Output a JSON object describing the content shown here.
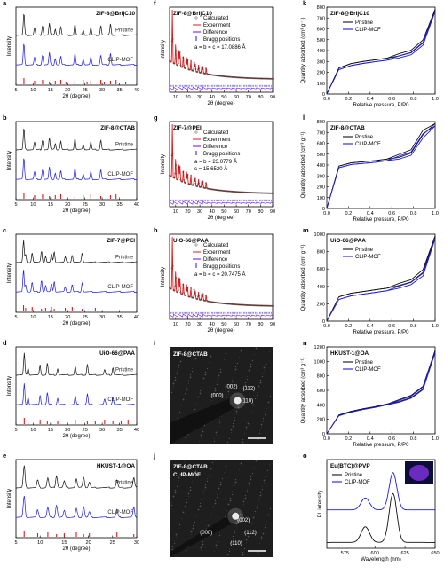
{
  "colors": {
    "black": "#111111",
    "blue": "#1a1ae6",
    "red": "#e31a1c",
    "gray": "#666666",
    "purple": "#6f00ff",
    "tem_bg": "#1e1e1e",
    "pl_photo": "#6b2bbf"
  },
  "tem": [
    {
      "letter": "i",
      "title": "ZIF-8@CTAB",
      "title2": "",
      "labels": [
        "(002)",
        "(112)",
        "(000)",
        "(110)"
      ]
    },
    {
      "letter": "j",
      "title": "ZIF-8@CTAB",
      "title2": "CLIP-MOF",
      "labels": [
        "(002)",
        "(000)",
        "(112)",
        "(110)"
      ]
    }
  ],
  "chart_data": [
    {
      "letter": "a",
      "type": "line",
      "title": "ZIF-8@BrijC10",
      "xlabel": "2θ (degree)",
      "ylabel": "Intensity",
      "xlim": [
        5,
        40
      ],
      "xticks": [
        5,
        10,
        15,
        20,
        25,
        30,
        35,
        40
      ],
      "series": [
        {
          "name": "Pristine",
          "peaks": [
            7.3,
            10.4,
            12.7,
            14.7,
            16.4,
            18.0,
            22.1,
            24.5,
            26.7,
            29.6,
            32.4
          ]
        },
        {
          "name": "CLIP-MOF",
          "peaks": [
            7.3,
            10.4,
            12.7,
            14.7,
            16.4,
            18.0,
            22.1,
            24.5,
            26.7,
            29.6,
            32.4
          ]
        }
      ],
      "ref_ticks": [
        7.3,
        10.4,
        12.7,
        14.7,
        16.4,
        18.0,
        19.5,
        22.1,
        24.5,
        25.6,
        26.7,
        29.6,
        30.6,
        32.4,
        34.0,
        36.8
      ]
    },
    {
      "letter": "b",
      "type": "line",
      "title": "ZIF-8@CTAB",
      "xlabel": "2θ (degree)",
      "ylabel": "Intensity",
      "xlim": [
        5,
        40
      ],
      "xticks": [
        5,
        10,
        15,
        20,
        25,
        30,
        35,
        40
      ],
      "series": [
        {
          "name": "Pristine",
          "peaks": [
            7.3,
            10.4,
            12.7,
            14.7,
            16.4,
            18.0,
            22.1,
            24.5,
            26.7,
            29.6
          ]
        },
        {
          "name": "CLIP-MOF",
          "peaks": [
            7.3,
            10.4,
            12.7,
            14.7,
            16.4,
            18.0,
            22.1,
            24.5,
            26.7,
            29.6
          ]
        }
      ],
      "ref_ticks": [
        7.3,
        10.4,
        12.7,
        14.7,
        16.4,
        18.0,
        22.1,
        24.5,
        26.7,
        29.6,
        32.4,
        34.0
      ]
    },
    {
      "letter": "c",
      "type": "line",
      "title": "ZIF-7@PEI",
      "xlabel": "2θ (degree)",
      "ylabel": "Intensity",
      "xlim": [
        5,
        40
      ],
      "xticks": [
        5,
        10,
        15,
        20,
        25,
        30,
        35,
        40
      ],
      "series": [
        {
          "name": "Pristine",
          "peaks": [
            7.2,
            7.8,
            9.7,
            12.4,
            13.6,
            15.3,
            16.1,
            19.3,
            21.3,
            24.2
          ]
        },
        {
          "name": "CLIP-MOF",
          "peaks": [
            7.2,
            7.8,
            9.7,
            12.4,
            13.6,
            15.3,
            16.1,
            19.3,
            21.3,
            24.2
          ]
        }
      ],
      "ref_ticks": [
        7.2,
        7.8,
        9.7,
        12.4,
        13.6,
        15.3,
        16.1,
        19.3,
        21.3,
        24.2,
        28.0
      ]
    },
    {
      "letter": "d",
      "type": "line",
      "title": "UiO-66@PAA",
      "xlabel": "2θ (degree)",
      "ylabel": "Intensity",
      "xlim": [
        5,
        40
      ],
      "xticks": [
        5,
        10,
        15,
        20,
        25,
        30,
        35,
        40
      ],
      "series": [
        {
          "name": "Pristine",
          "peaks": [
            7.4,
            8.5,
            12.0,
            14.1,
            17.1,
            22.2,
            25.7,
            30.7,
            33.1
          ]
        },
        {
          "name": "CLIP-MOF",
          "peaks": [
            7.4,
            8.5,
            12.0,
            14.1,
            17.1,
            22.2,
            25.7,
            30.7,
            33.1
          ]
        }
      ],
      "ref_ticks": [
        7.4,
        8.5,
        12.0,
        14.1,
        17.1,
        22.2,
        25.7,
        28.0,
        30.7,
        33.1,
        35.5,
        37.5
      ]
    },
    {
      "letter": "e",
      "type": "line",
      "title": "HKUST-1@OA",
      "xlabel": "2θ (degree)",
      "ylabel": "Intensity",
      "xlim": [
        5,
        30
      ],
      "xticks": [
        5,
        10,
        15,
        20,
        25,
        30
      ],
      "series": [
        {
          "name": "Pristine",
          "peaks": [
            6.7,
            9.5,
            11.6,
            13.4,
            15.0,
            17.5,
            19.0,
            20.2,
            25.9,
            29.4
          ]
        },
        {
          "name": "CLIP-MOF",
          "peaks": [
            6.7,
            9.5,
            11.6,
            13.4,
            15.0,
            17.5,
            19.0,
            20.2,
            25.9,
            29.4
          ]
        }
      ],
      "ref_ticks": [
        6.7,
        9.5,
        11.6,
        13.4,
        15.0,
        17.5,
        19.0,
        20.2,
        25.9,
        29.4
      ]
    },
    {
      "letter": "f",
      "type": "scatter",
      "title": "ZIF-8@BrijC10",
      "xlabel": "2θ (degree)",
      "ylabel": "Intensity",
      "xlim": [
        5,
        90
      ],
      "xticks": [
        10,
        20,
        30,
        40,
        50,
        60,
        70,
        80,
        90
      ],
      "legend": [
        "Calculated",
        "Experiment",
        "Difference",
        "Bragg positions"
      ],
      "cell_line1": "a = b = c = 17.0886 Å",
      "cell_line2": ""
    },
    {
      "letter": "g",
      "type": "scatter",
      "title": "ZIF-7@PEI",
      "xlabel": "2θ (degree)",
      "ylabel": "Intensity",
      "xlim": [
        5,
        90
      ],
      "xticks": [
        10,
        20,
        30,
        40,
        50,
        60,
        70,
        80,
        90
      ],
      "legend": [
        "Calculated",
        "Experiment",
        "Difference",
        "Bragg positions"
      ],
      "cell_line1": "a = b = 23.0779 Å",
      "cell_line2": "c = 15.6520 Å"
    },
    {
      "letter": "h",
      "type": "scatter",
      "title": "UiO-66@PAA",
      "xlabel": "2θ (degree)",
      "ylabel": "Intensity",
      "xlim": [
        5,
        90
      ],
      "xticks": [
        10,
        20,
        30,
        40,
        50,
        60,
        70,
        80,
        90
      ],
      "legend": [
        "Calculated",
        "Experiment",
        "Difference",
        "Bragg positions"
      ],
      "cell_line1": "a = b = c = 20.7475 Å",
      "cell_line2": ""
    },
    {
      "letter": "k",
      "type": "line",
      "title": "ZIF-8@BrijC10",
      "xlabel": "Relative pressure, P/P0",
      "ylabel": "Quantity adsorbed (cm³ g⁻¹)",
      "xlim": [
        0,
        1
      ],
      "ylim": [
        0,
        800
      ],
      "xticks": [
        0.0,
        0.2,
        0.4,
        0.6,
        0.8,
        1.0
      ],
      "yticks": [
        0,
        100,
        200,
        300,
        400,
        500,
        600,
        700,
        800
      ],
      "series": [
        {
          "name": "Pristine",
          "values": [
            0,
            240,
            280,
            300,
            315,
            330,
            350,
            380,
            470,
            780
          ]
        },
        {
          "name": "CLIP-MOF",
          "values": [
            0,
            225,
            262,
            282,
            297,
            312,
            332,
            362,
            450,
            760
          ]
        }
      ]
    },
    {
      "letter": "l",
      "type": "line",
      "title": "ZIF-8@CTAB",
      "xlabel": "Relative pressure, P/P0",
      "ylabel": "Quantity adsorbed (cm³ g⁻¹)",
      "xlim": [
        0,
        1
      ],
      "ylim": [
        0,
        800
      ],
      "xticks": [
        0.0,
        0.2,
        0.4,
        0.6,
        0.8,
        1.0
      ],
      "yticks": [
        0,
        100,
        200,
        300,
        400,
        500,
        600,
        700,
        800
      ],
      "series": [
        {
          "name": "Pristine",
          "values": [
            0,
            390,
            420,
            430,
            440,
            455,
            470,
            510,
            680,
            780
          ]
        },
        {
          "name": "CLIP-MOF",
          "values": [
            0,
            375,
            405,
            415,
            425,
            440,
            455,
            490,
            650,
            760
          ]
        }
      ]
    },
    {
      "letter": "m",
      "type": "line",
      "title": "UiO-66@PAA",
      "xlabel": "Relative pressure, P/P0",
      "ylabel": "Quantity adsorbed (cm³ g⁻¹)",
      "xlim": [
        0,
        1
      ],
      "ylim": [
        0,
        1000
      ],
      "xticks": [
        0.0,
        0.2,
        0.4,
        0.6,
        0.8,
        1.0
      ],
      "yticks": [
        0,
        200,
        400,
        600,
        800,
        1000
      ],
      "series": [
        {
          "name": "Pristine",
          "values": [
            0,
            280,
            320,
            340,
            360,
            380,
            410,
            450,
            560,
            980
          ]
        },
        {
          "name": "CLIP-MOF",
          "values": [
            0,
            250,
            290,
            310,
            330,
            350,
            380,
            420,
            520,
            950
          ]
        }
      ]
    },
    {
      "letter": "n",
      "type": "line",
      "title": "HKUST-1@OA",
      "xlabel": "Relative pressure, P/P0",
      "ylabel": "Quantity adsorbed (cm³ g⁻¹)",
      "xlim": [
        0,
        1
      ],
      "ylim": [
        0,
        1200
      ],
      "xticks": [
        0.0,
        0.2,
        0.4,
        0.6,
        0.8,
        1.0
      ],
      "yticks": [
        0,
        200,
        400,
        600,
        800,
        1000,
        1200
      ],
      "series": [
        {
          "name": "Pristine",
          "values": [
            0,
            260,
            310,
            345,
            375,
            410,
            445,
            500,
            620,
            1150
          ]
        },
        {
          "name": "CLIP-MOF",
          "values": [
            0,
            250,
            300,
            335,
            365,
            400,
            435,
            490,
            610,
            1120
          ]
        }
      ]
    },
    {
      "letter": "o",
      "type": "line",
      "title": "Eu(BTC)@PVP",
      "xlabel": "Wavelength (nm)",
      "ylabel": "PL intensity",
      "xlim": [
        560,
        650
      ],
      "xticks": [
        575,
        600,
        625,
        650
      ],
      "series": [
        {
          "name": "Pristine",
          "peaks": [
            592,
            615
          ]
        },
        {
          "name": "CLIP-MOF",
          "peaks": [
            592,
            615
          ]
        }
      ]
    }
  ]
}
